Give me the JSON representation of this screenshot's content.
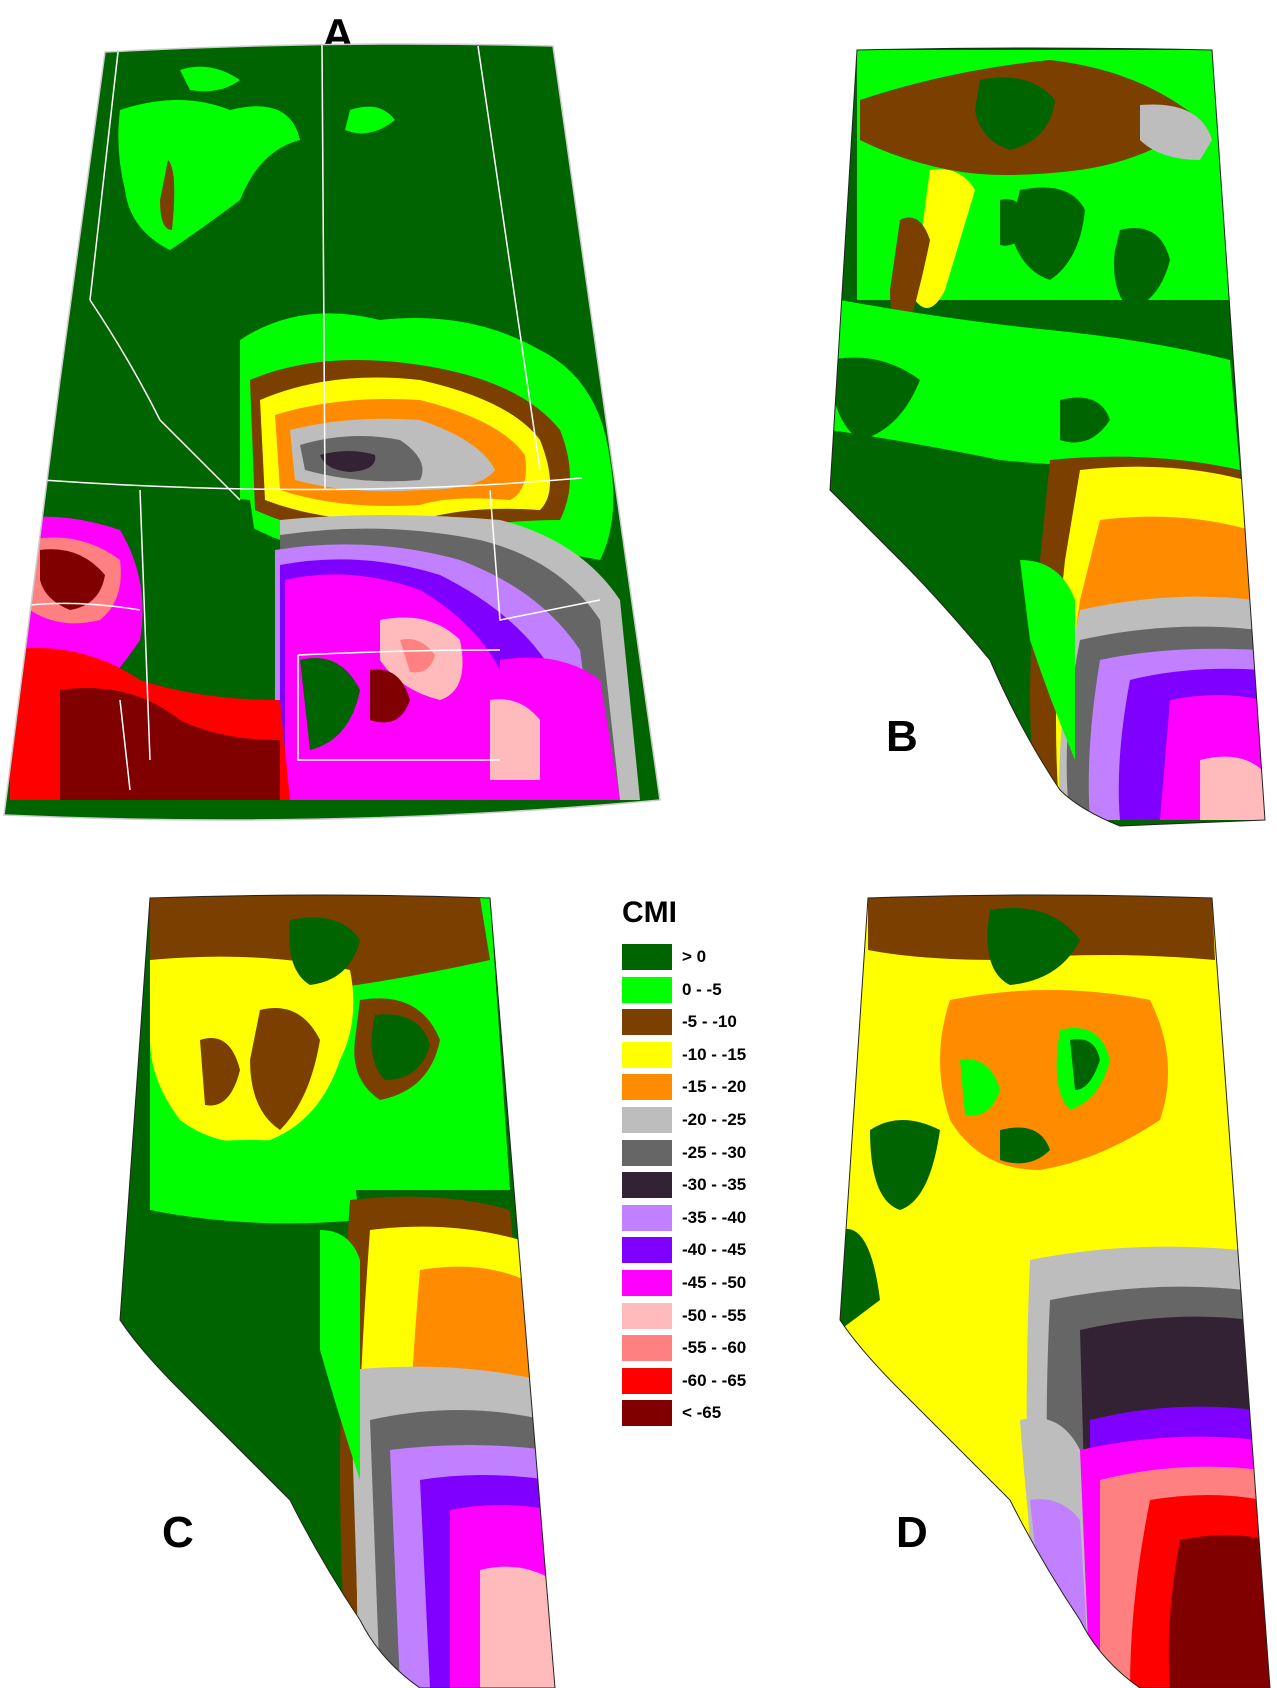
{
  "panels": [
    {
      "label": "A"
    },
    {
      "label": "B"
    },
    {
      "label": "C"
    },
    {
      "label": "D"
    }
  ],
  "legend": {
    "title": "CMI",
    "items": [
      {
        "label": "> 0",
        "color": "#006400"
      },
      {
        "label": "0 - -5",
        "color": "#00ff00"
      },
      {
        "label": "-5 - -10",
        "color": "#7b3f00"
      },
      {
        "label": "-10 - -15",
        "color": "#ffff00"
      },
      {
        "label": "-15 - -20",
        "color": "#ff8c00"
      },
      {
        "label": "-20 - -25",
        "color": "#bdbdbd"
      },
      {
        "label": "-25 - -30",
        "color": "#666666"
      },
      {
        "label": "-30 - -35",
        "color": "#332233"
      },
      {
        "label": "-35 - -40",
        "color": "#c080ff"
      },
      {
        "label": "-40 - -45",
        "color": "#8000ff"
      },
      {
        "label": "-45 - -50",
        "color": "#ff00ff"
      },
      {
        "label": "-50 - -55",
        "color": "#ffbbbb"
      },
      {
        "label": "-55 - -60",
        "color": "#ff8080"
      },
      {
        "label": "-60 - -65",
        "color": "#ff0000"
      },
      {
        "label": "< -65",
        "color": "#800000"
      }
    ]
  }
}
